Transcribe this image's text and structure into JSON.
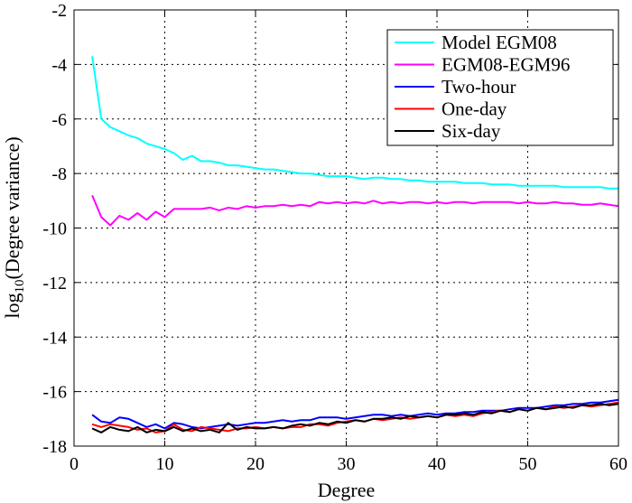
{
  "chart_data": {
    "type": "line",
    "title": "",
    "xlabel": "Degree",
    "ylabel_prefix": "log",
    "ylabel_subscript": "10",
    "ylabel_suffix": "(Degree variance)",
    "xlim": [
      0,
      60
    ],
    "ylim": [
      -18,
      -2
    ],
    "xticks": [
      0,
      10,
      20,
      30,
      40,
      50,
      60
    ],
    "yticks": [
      -18,
      -16,
      -14,
      -12,
      -10,
      -8,
      -6,
      -4,
      -2
    ],
    "grid": true,
    "legend_position": "top-right",
    "x": [
      2,
      3,
      4,
      5,
      6,
      7,
      8,
      9,
      10,
      11,
      12,
      13,
      14,
      15,
      16,
      17,
      18,
      19,
      20,
      21,
      22,
      23,
      24,
      25,
      26,
      27,
      28,
      29,
      30,
      31,
      32,
      33,
      34,
      35,
      36,
      37,
      38,
      39,
      40,
      41,
      42,
      43,
      44,
      45,
      46,
      47,
      48,
      49,
      50,
      51,
      52,
      53,
      54,
      55,
      56,
      57,
      58,
      59,
      60
    ],
    "series": [
      {
        "name": "Model EGM08",
        "color": "#00ffff",
        "values": [
          -3.7,
          -6.0,
          -6.3,
          -6.45,
          -6.6,
          -6.7,
          -6.9,
          -7.0,
          -7.1,
          -7.25,
          -7.5,
          -7.35,
          -7.55,
          -7.55,
          -7.6,
          -7.7,
          -7.7,
          -7.75,
          -7.8,
          -7.85,
          -7.85,
          -7.9,
          -7.95,
          -8.0,
          -8.0,
          -8.05,
          -8.1,
          -8.1,
          -8.1,
          -8.15,
          -8.2,
          -8.15,
          -8.15,
          -8.2,
          -8.2,
          -8.25,
          -8.25,
          -8.3,
          -8.3,
          -8.3,
          -8.3,
          -8.35,
          -8.35,
          -8.35,
          -8.4,
          -8.4,
          -8.4,
          -8.45,
          -8.45,
          -8.45,
          -8.45,
          -8.45,
          -8.5,
          -8.5,
          -8.5,
          -8.5,
          -8.5,
          -8.55,
          -8.55
        ]
      },
      {
        "name": "EGM08-EGM96",
        "color": "#ff00ff",
        "values": [
          -8.8,
          -9.6,
          -9.9,
          -9.55,
          -9.7,
          -9.45,
          -9.7,
          -9.4,
          -9.6,
          -9.3,
          -9.3,
          -9.3,
          -9.3,
          -9.25,
          -9.35,
          -9.25,
          -9.3,
          -9.2,
          -9.25,
          -9.2,
          -9.2,
          -9.15,
          -9.2,
          -9.15,
          -9.2,
          -9.05,
          -9.1,
          -9.05,
          -9.1,
          -9.05,
          -9.1,
          -9.0,
          -9.1,
          -9.05,
          -9.1,
          -9.05,
          -9.05,
          -9.1,
          -9.05,
          -9.1,
          -9.05,
          -9.05,
          -9.1,
          -9.05,
          -9.05,
          -9.05,
          -9.05,
          -9.1,
          -9.05,
          -9.1,
          -9.1,
          -9.05,
          -9.1,
          -9.1,
          -9.15,
          -9.15,
          -9.1,
          -9.15,
          -9.2
        ]
      },
      {
        "name": "Two-hour",
        "color": "#0000ff",
        "values": [
          -16.85,
          -17.1,
          -17.15,
          -16.95,
          -17.0,
          -17.15,
          -17.3,
          -17.2,
          -17.35,
          -17.15,
          -17.2,
          -17.3,
          -17.35,
          -17.3,
          -17.25,
          -17.2,
          -17.25,
          -17.2,
          -17.15,
          -17.15,
          -17.1,
          -17.05,
          -17.1,
          -17.05,
          -17.05,
          -16.95,
          -16.95,
          -16.95,
          -17.0,
          -16.95,
          -16.9,
          -16.85,
          -16.85,
          -16.9,
          -16.85,
          -16.9,
          -16.85,
          -16.8,
          -16.85,
          -16.8,
          -16.8,
          -16.75,
          -16.75,
          -16.7,
          -16.7,
          -16.7,
          -16.65,
          -16.6,
          -16.6,
          -16.6,
          -16.55,
          -16.5,
          -16.5,
          -16.45,
          -16.45,
          -16.4,
          -16.4,
          -16.35,
          -16.3
        ]
      },
      {
        "name": "One-day",
        "color": "#ff0000",
        "values": [
          -17.2,
          -17.3,
          -17.2,
          -17.25,
          -17.3,
          -17.4,
          -17.35,
          -17.5,
          -17.45,
          -17.2,
          -17.4,
          -17.45,
          -17.3,
          -17.35,
          -17.4,
          -17.45,
          -17.35,
          -17.35,
          -17.3,
          -17.35,
          -17.3,
          -17.35,
          -17.3,
          -17.3,
          -17.2,
          -17.2,
          -17.25,
          -17.15,
          -17.1,
          -17.05,
          -17.1,
          -17.0,
          -17.05,
          -17.0,
          -16.95,
          -17.0,
          -16.95,
          -16.9,
          -16.95,
          -16.85,
          -16.9,
          -16.85,
          -16.9,
          -16.8,
          -16.75,
          -16.7,
          -16.75,
          -16.65,
          -16.7,
          -16.6,
          -16.65,
          -16.55,
          -16.6,
          -16.55,
          -16.5,
          -16.55,
          -16.5,
          -16.45,
          -16.4
        ]
      },
      {
        "name": "Six-day",
        "color": "#000000",
        "values": [
          -17.35,
          -17.5,
          -17.3,
          -17.4,
          -17.45,
          -17.3,
          -17.5,
          -17.4,
          -17.45,
          -17.3,
          -17.45,
          -17.35,
          -17.45,
          -17.4,
          -17.5,
          -17.15,
          -17.4,
          -17.3,
          -17.35,
          -17.35,
          -17.3,
          -17.35,
          -17.25,
          -17.2,
          -17.25,
          -17.15,
          -17.2,
          -17.1,
          -17.15,
          -17.05,
          -17.1,
          -17.0,
          -17.0,
          -16.95,
          -17.0,
          -16.9,
          -16.95,
          -16.9,
          -16.95,
          -16.85,
          -16.85,
          -16.8,
          -16.85,
          -16.75,
          -16.8,
          -16.7,
          -16.75,
          -16.65,
          -16.7,
          -16.6,
          -16.65,
          -16.6,
          -16.55,
          -16.6,
          -16.5,
          -16.5,
          -16.45,
          -16.5,
          -16.45
        ]
      }
    ]
  }
}
